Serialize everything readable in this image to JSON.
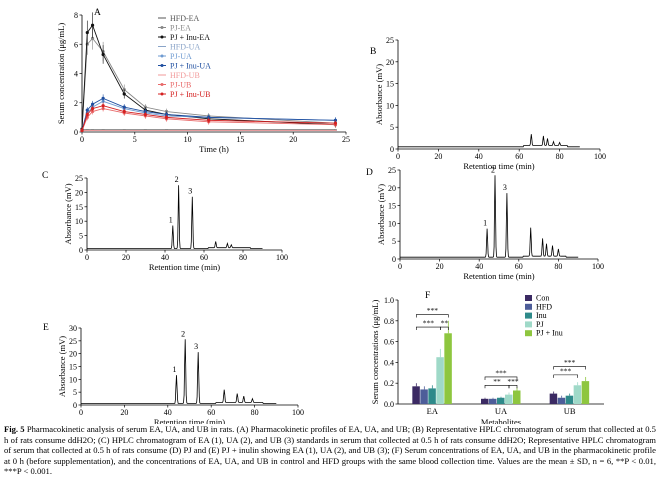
{
  "figure": {
    "caption": {
      "label": "Fig. 5",
      "text": "Pharmacokinetic analysis of serum EA, UA, and UB in rats. (A) Pharmacokinetic profiles of EA, UA, and UB; (B) Representative HPLC chromatogram of serum that collected at 0.5 h of rats consume ddH2O; (C) HPLC chromatogram of EA (1), UA (2), and UB (3) standards in serum that collected at 0.5 h of rats consume ddH2O; Representative HPLC chromatogram of serum that collected at 0.5 h of rats consume (D) PJ and (E) PJ + inulin showing EA (1), UA (2), and UB (3); (F) Serum concentrations of EA, UA, and UB in the pharmacokinetic profile at 0 h (before supplementation), and the concentrations of EA, UA, and UB in control and HFD groups with the same blood collection time. Values are the mean ± SD, n = 6, **P < 0.01, ***P < 0.001."
    }
  },
  "chart_data": [
    {
      "panel": "A",
      "type": "line",
      "xlabel": "Time (h)",
      "ylabel": "Serum concentration (μg/mL)",
      "xlim": [
        0,
        25
      ],
      "ylim": [
        0,
        8
      ],
      "xticks": [
        0,
        5,
        10,
        15,
        20,
        25
      ],
      "yticks": [
        0,
        2,
        4,
        6,
        8
      ],
      "x": [
        0,
        0.5,
        1,
        2,
        4,
        6,
        8,
        12,
        24
      ],
      "series": [
        {
          "name": "HFD-EA",
          "color": "#555555",
          "marker": "none",
          "values": [
            0.15,
            0.15,
            0.15,
            0.15,
            0.15,
            0.15,
            0.15,
            0.15,
            0.15
          ]
        },
        {
          "name": "PJ-EA",
          "color": "#888888",
          "marker": "circle",
          "values": [
            0.2,
            6.0,
            6.4,
            5.5,
            2.9,
            1.7,
            1.4,
            1.1,
            0.6
          ]
        },
        {
          "name": "PJ + Inu-EA",
          "color": "#111111",
          "marker": "circle",
          "values": [
            0.2,
            6.8,
            7.3,
            5.3,
            2.6,
            1.5,
            1.2,
            0.9,
            0.5
          ]
        },
        {
          "name": "HFD-UA",
          "color": "#8aa4c8",
          "marker": "none",
          "values": [
            0.1,
            0.1,
            0.1,
            0.1,
            0.1,
            0.1,
            0.1,
            0.1,
            0.1
          ]
        },
        {
          "name": "PJ-UA",
          "color": "#6f9bd1",
          "marker": "circle",
          "values": [
            0.1,
            1.3,
            1.7,
            2.1,
            1.6,
            1.3,
            1.1,
            1.0,
            0.8
          ]
        },
        {
          "name": "PJ + Inu-UA",
          "color": "#1f4fa0",
          "marker": "circle",
          "values": [
            0.1,
            1.5,
            1.9,
            2.3,
            1.7,
            1.4,
            1.2,
            1.0,
            0.8
          ]
        },
        {
          "name": "HFD-UB",
          "color": "#f29a9a",
          "marker": "none",
          "values": [
            0.1,
            0.1,
            0.1,
            0.1,
            0.1,
            0.1,
            0.1,
            0.1,
            0.1
          ]
        },
        {
          "name": "PJ-UB",
          "color": "#e86a6a",
          "marker": "circle",
          "values": [
            0.1,
            1.0,
            1.4,
            1.6,
            1.3,
            1.1,
            0.9,
            0.7,
            0.5
          ]
        },
        {
          "name": "PJ + Inu-UB",
          "color": "#d42020",
          "marker": "circle",
          "values": [
            0.1,
            1.2,
            1.6,
            1.8,
            1.4,
            1.2,
            1.0,
            0.8,
            0.6
          ]
        }
      ]
    },
    {
      "panel": "B",
      "type": "line",
      "xlabel": "Retention time (min)",
      "ylabel": "Absorbance (mV)",
      "xlim": [
        0,
        100
      ],
      "ylim": [
        0,
        25
      ],
      "xticks": [
        0,
        20,
        40,
        60,
        80,
        100
      ],
      "yticks": [
        0,
        5,
        10,
        15,
        20,
        25
      ],
      "trace_end": 90,
      "peaks": [
        {
          "rt": 66,
          "height": 2.6,
          "label": ""
        },
        {
          "rt": 72,
          "height": 2.2,
          "label": ""
        },
        {
          "rt": 74,
          "height": 1.6,
          "label": ""
        },
        {
          "rt": 77,
          "height": 0.9,
          "label": ""
        },
        {
          "rt": 80,
          "height": 0.7,
          "label": ""
        }
      ]
    },
    {
      "panel": "C",
      "type": "line",
      "xlabel": "Retention time (min)",
      "ylabel": "Absorbance (mV)",
      "xlim": [
        0,
        100
      ],
      "ylim": [
        0,
        25
      ],
      "xticks": [
        0,
        20,
        40,
        60,
        80,
        100
      ],
      "yticks": [
        0,
        5,
        10,
        15,
        20,
        25
      ],
      "trace_end": 90,
      "peaks": [
        {
          "rt": 44,
          "height": 8,
          "label": "1"
        },
        {
          "rt": 47,
          "height": 22,
          "label": "2"
        },
        {
          "rt": 54,
          "height": 18,
          "label": "3"
        },
        {
          "rt": 66,
          "height": 2.2,
          "label": ""
        },
        {
          "rt": 72,
          "height": 1.5,
          "label": ""
        },
        {
          "rt": 74,
          "height": 1.0,
          "label": ""
        }
      ]
    },
    {
      "panel": "D",
      "type": "line",
      "xlabel": "Retention time (min)",
      "ylabel": "Absorbance (mV)",
      "xlim": [
        0,
        100
      ],
      "ylim": [
        0,
        25
      ],
      "xticks": [
        0,
        20,
        40,
        60,
        80,
        100
      ],
      "yticks": [
        0,
        5,
        10,
        15,
        20,
        25
      ],
      "trace_end": 90,
      "peaks": [
        {
          "rt": 44,
          "height": 8,
          "label": "1"
        },
        {
          "rt": 48,
          "height": 23,
          "label": "2"
        },
        {
          "rt": 54,
          "height": 18,
          "label": "3"
        },
        {
          "rt": 66,
          "height": 8,
          "label": ""
        },
        {
          "rt": 72,
          "height": 5,
          "label": ""
        },
        {
          "rt": 74,
          "height": 3.5,
          "label": ""
        },
        {
          "rt": 77,
          "height": 3,
          "label": ""
        },
        {
          "rt": 80,
          "height": 2,
          "label": ""
        }
      ]
    },
    {
      "panel": "E",
      "type": "line",
      "xlabel": "Retention time (min)",
      "ylabel": "Absorbance (mV)",
      "xlim": [
        0,
        100
      ],
      "ylim": [
        0,
        30
      ],
      "xticks": [
        0,
        20,
        40,
        60,
        80,
        100
      ],
      "yticks": [
        0,
        5,
        10,
        15,
        20,
        25,
        30
      ],
      "trace_end": 90,
      "peaks": [
        {
          "rt": 44,
          "height": 11,
          "label": "1"
        },
        {
          "rt": 48,
          "height": 25,
          "label": "2"
        },
        {
          "rt": 54,
          "height": 20,
          "label": "3"
        },
        {
          "rt": 66,
          "height": 5,
          "label": ""
        },
        {
          "rt": 72,
          "height": 3.5,
          "label": ""
        },
        {
          "rt": 75,
          "height": 2.5,
          "label": ""
        },
        {
          "rt": 79,
          "height": 1.5,
          "label": ""
        }
      ]
    },
    {
      "panel": "F",
      "type": "bar",
      "xlabel": "Metabolites",
      "ylabel": "Serum concentrations (μg/mL)",
      "ylim": [
        0,
        1.0
      ],
      "yticks": [
        0.0,
        0.2,
        0.4,
        0.6,
        0.8,
        1.0
      ],
      "categories": [
        "EA",
        "UA",
        "UB"
      ],
      "series": [
        {
          "name": "Con",
          "color": "#3b2a63",
          "values": [
            0.17,
            0.05,
            0.1
          ],
          "errors": [
            0.03,
            0.01,
            0.02
          ]
        },
        {
          "name": "HFD",
          "color": "#4d5d99",
          "values": [
            0.14,
            0.05,
            0.06
          ],
          "errors": [
            0.03,
            0.01,
            0.02
          ]
        },
        {
          "name": "Inu",
          "color": "#2e8a8a",
          "values": [
            0.15,
            0.06,
            0.08
          ],
          "errors": [
            0.03,
            0.01,
            0.02
          ]
        },
        {
          "name": "PJ",
          "color": "#9fd9c8",
          "values": [
            0.45,
            0.09,
            0.18
          ],
          "errors": [
            0.08,
            0.02,
            0.03
          ]
        },
        {
          "name": "PJ + Inu",
          "color": "#8ec63f",
          "values": [
            0.68,
            0.13,
            0.22
          ],
          "errors": [
            0.12,
            0.03,
            0.04
          ]
        }
      ],
      "annotations": [
        "***",
        "***",
        "**",
        "***",
        "**",
        "***",
        "***",
        "***"
      ]
    }
  ]
}
